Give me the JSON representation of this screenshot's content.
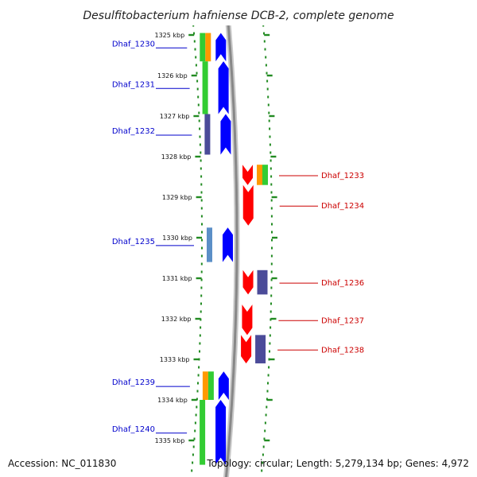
{
  "title": "Desulfitobacterium hafniense DCB-2, complete genome",
  "footer": {
    "accession": "Accession: NC_011830",
    "summary": "Topology: circular; Length: 5,279,134 bp; Genes: 4,972"
  },
  "colors": {
    "left_label": "#0000cc",
    "right_label": "#cc0000",
    "tick": "#228b22",
    "backbone": "#888888",
    "green": "#33cc33",
    "orange": "#ff9900",
    "navy": "#4b4b99",
    "steel": "#5b8fc7",
    "blue": "#0000ff",
    "red": "#ff0000"
  },
  "position_markers": [
    "1325 kbp",
    "1326 kbp",
    "1327 kbp",
    "1328 kbp",
    "1329 kbp",
    "1330 kbp",
    "1331 kbp",
    "1332 kbp",
    "1333 kbp",
    "1334 kbp",
    "1335 kbp"
  ],
  "genes_left": [
    {
      "label": "Dhaf_1230",
      "start_kbp": 1324.95,
      "end_kbp": 1325.65,
      "bars": [
        "green",
        "orange"
      ],
      "arrow": "blue"
    },
    {
      "label": "Dhaf_1231",
      "start_kbp": 1325.65,
      "end_kbp": 1326.95,
      "bars": [
        "green"
      ],
      "arrow": "blue"
    },
    {
      "label": "Dhaf_1232",
      "start_kbp": 1326.95,
      "end_kbp": 1327.95,
      "bars": [
        "navy"
      ],
      "arrow": "blue"
    },
    {
      "label": "Dhaf_1235",
      "start_kbp": 1329.75,
      "end_kbp": 1330.6,
      "bars": [
        "steel"
      ],
      "arrow": "blue"
    },
    {
      "label": "Dhaf_1239",
      "start_kbp": 1333.3,
      "end_kbp": 1334.0,
      "bars": [
        "orange",
        "green"
      ],
      "arrow": "blue"
    },
    {
      "label": "Dhaf_1240",
      "start_kbp": 1334.0,
      "end_kbp": 1335.6,
      "bars": [
        "green"
      ],
      "arrow": "blue"
    }
  ],
  "genes_right": [
    {
      "label": "Dhaf_1233",
      "start_kbp": 1328.2,
      "end_kbp": 1328.7,
      "bars": [
        "orange",
        "green"
      ],
      "arrow": "red"
    },
    {
      "label": "Dhaf_1234",
      "start_kbp": 1328.7,
      "end_kbp": 1329.7,
      "bars": [],
      "arrow": "red"
    },
    {
      "label": "Dhaf_1236",
      "start_kbp": 1330.8,
      "end_kbp": 1331.4,
      "bars": [
        "navy"
      ],
      "arrow": "red"
    },
    {
      "label": "Dhaf_1237",
      "start_kbp": 1331.65,
      "end_kbp": 1332.4,
      "bars": [],
      "arrow": "red"
    },
    {
      "label": "Dhaf_1238",
      "start_kbp": 1332.4,
      "end_kbp": 1333.1,
      "bars": [
        "navy"
      ],
      "arrow": "red"
    }
  ]
}
